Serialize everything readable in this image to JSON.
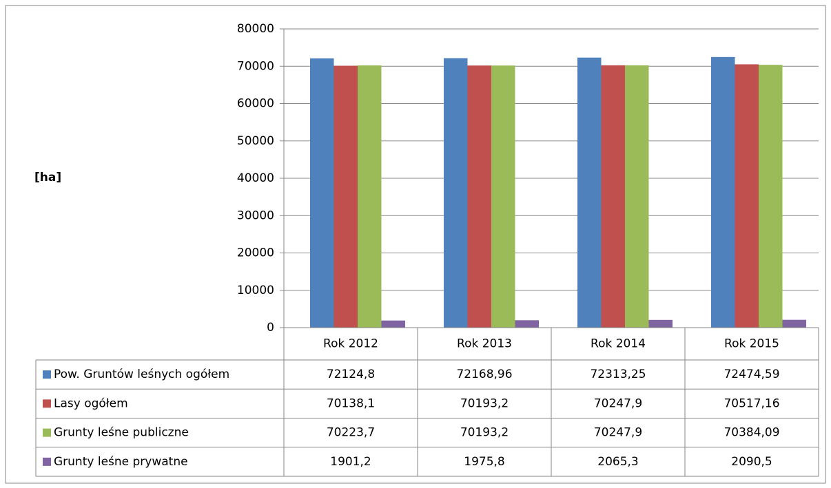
{
  "chart_data": {
    "type": "bar",
    "y_label": "[ha]",
    "categories": [
      "Rok 2012",
      "Rok 2013",
      "Rok 2014",
      "Rok 2015"
    ],
    "series": [
      {
        "name": "Pow. Gruntów leśnych ogółem",
        "color": "#4f81bd",
        "values": [
          72124.8,
          72168.96,
          72313.25,
          72474.59
        ],
        "value_labels": [
          "72124,8",
          "72168,96",
          "72313,25",
          "72474,59"
        ]
      },
      {
        "name": "Lasy ogółem",
        "color": "#c0504d",
        "values": [
          70138.1,
          70193.2,
          70247.9,
          70517.16
        ],
        "value_labels": [
          "70138,1",
          "70193,2",
          "70247,9",
          "70517,16"
        ]
      },
      {
        "name": "Grunty leśne publiczne",
        "color": "#9bbb59",
        "values": [
          70223.7,
          70193.2,
          70247.9,
          70384.09
        ],
        "value_labels": [
          "70223,7",
          "70193,2",
          "70247,9",
          "70384,09"
        ]
      },
      {
        "name": "Grunty leśne prywatne",
        "color": "#8064a2",
        "values": [
          1901.2,
          1975.8,
          2065.3,
          2090.5
        ],
        "value_labels": [
          "1901,2",
          "1975,8",
          "2065,3",
          "2090,5"
        ]
      }
    ],
    "ylim": [
      0,
      80000
    ],
    "yticks": [
      0,
      10000,
      20000,
      30000,
      40000,
      50000,
      60000,
      70000,
      80000
    ],
    "grid": true
  }
}
